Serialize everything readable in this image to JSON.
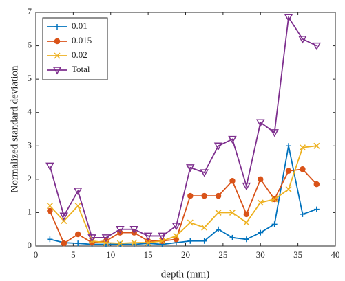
{
  "chart_data": {
    "type": "line",
    "xlabel": "depth (mm)",
    "ylabel": "Normalized standard deviation",
    "x": [
      1.875,
      3.75,
      5.625,
      7.5,
      9.375,
      11.25,
      13.125,
      15,
      16.875,
      18.75,
      20.625,
      22.5,
      24.375,
      26.25,
      28.125,
      30,
      31.875,
      33.75,
      35.625,
      37.5
    ],
    "series": [
      {
        "name": "0.01",
        "color": "#0072bd",
        "marker": "+",
        "values": [
          0.2,
          0.1,
          0.08,
          0.05,
          0.05,
          0.05,
          0.05,
          0.08,
          0.05,
          0.1,
          0.15,
          0.15,
          0.5,
          0.25,
          0.2,
          0.4,
          0.65,
          3.0,
          0.95,
          1.1
        ]
      },
      {
        "name": "0.015",
        "color": "#d95319",
        "marker": "o",
        "values": [
          1.05,
          0.08,
          0.35,
          0.1,
          0.15,
          0.4,
          0.4,
          0.15,
          0.15,
          0.2,
          1.5,
          1.5,
          1.5,
          1.95,
          0.95,
          2.0,
          1.4,
          2.25,
          2.3,
          1.85
        ]
      },
      {
        "name": "0.02",
        "color": "#edb120",
        "marker": "x",
        "values": [
          1.2,
          0.75,
          1.2,
          0.15,
          0.1,
          0.08,
          0.1,
          0.1,
          0.15,
          0.3,
          0.7,
          0.55,
          1.0,
          1.0,
          0.7,
          1.3,
          1.4,
          1.7,
          2.95,
          3.0
        ]
      },
      {
        "name": "Total",
        "color": "#7e2f8e",
        "marker": "v",
        "values": [
          2.4,
          0.9,
          1.65,
          0.25,
          0.25,
          0.5,
          0.5,
          0.3,
          0.3,
          0.6,
          2.35,
          2.2,
          3.0,
          3.2,
          1.8,
          3.7,
          3.4,
          6.85,
          6.2,
          6.0
        ]
      }
    ],
    "xlim": [
      0,
      40
    ],
    "xticks": [
      0,
      5,
      10,
      15,
      20,
      25,
      30,
      35,
      40
    ],
    "ylim": [
      0,
      7
    ],
    "yticks": [
      0,
      1,
      2,
      3,
      4,
      5,
      6,
      7
    ],
    "legend": "northwest"
  }
}
